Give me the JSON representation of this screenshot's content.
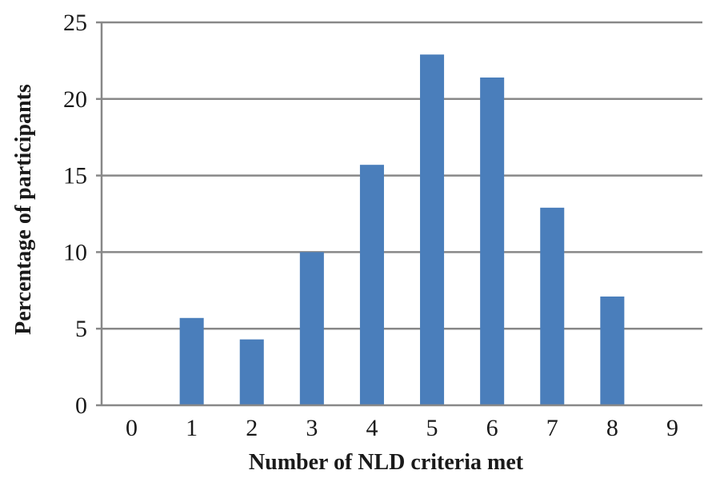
{
  "chart_data": {
    "type": "bar",
    "title": "",
    "xlabel": "Number of NLD criteria met",
    "ylabel": "Percentage of participants",
    "categories": [
      "0",
      "1",
      "2",
      "3",
      "4",
      "5",
      "6",
      "7",
      "8",
      "9"
    ],
    "values": [
      0,
      5.7,
      4.3,
      10.0,
      15.7,
      22.9,
      21.4,
      12.9,
      7.1,
      0
    ],
    "ylim": [
      0,
      25
    ],
    "yticks": [
      "0",
      "5",
      "10",
      "15",
      "20",
      "25"
    ],
    "grid": true,
    "legend": "none",
    "colors": {
      "bar": "#4a7ebb",
      "grid": "#888888",
      "axis": "#888888"
    }
  }
}
